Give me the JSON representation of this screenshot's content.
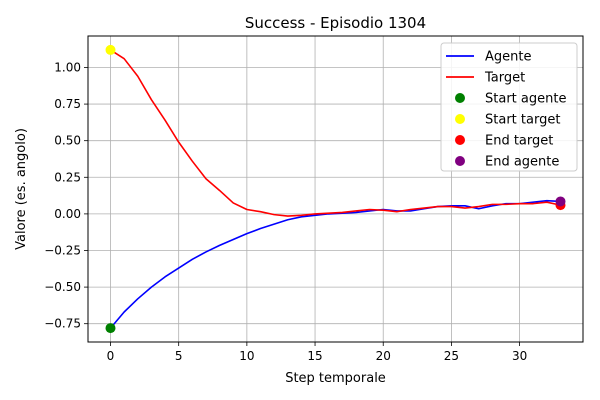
{
  "chart_data": {
    "type": "line",
    "title": "Success - Episodio 1304",
    "xlabel": "Step temporale",
    "ylabel": "Valore (es. angolo)",
    "xlim": [
      -1.65,
      34.65
    ],
    "ylim": [
      -0.875,
      1.215
    ],
    "xticks": [
      0,
      5,
      10,
      15,
      20,
      25,
      30
    ],
    "xtick_labels": [
      "0",
      "5",
      "10",
      "15",
      "20",
      "25",
      "30"
    ],
    "yticks": [
      -0.75,
      -0.5,
      -0.25,
      0.0,
      0.25,
      0.5,
      0.75,
      1.0
    ],
    "ytick_labels": [
      "−0.75",
      "−0.50",
      "−0.25",
      "0.00",
      "0.25",
      "0.50",
      "0.75",
      "1.00"
    ],
    "grid": true,
    "legend_position": "top-right",
    "series": [
      {
        "name": "Agente",
        "color": "#0000ff",
        "x": [
          0,
          1,
          2,
          3,
          4,
          5,
          6,
          7,
          8,
          9,
          10,
          11,
          12,
          13,
          14,
          15,
          16,
          17,
          18,
          19,
          20,
          21,
          22,
          23,
          24,
          25,
          26,
          27,
          28,
          29,
          30,
          31,
          32,
          33
        ],
        "y": [
          -0.78,
          -0.67,
          -0.58,
          -0.5,
          -0.43,
          -0.37,
          -0.31,
          -0.26,
          -0.215,
          -0.175,
          -0.135,
          -0.1,
          -0.07,
          -0.04,
          -0.02,
          -0.01,
          0.0,
          0.005,
          0.01,
          0.02,
          0.03,
          0.02,
          0.02,
          0.035,
          0.05,
          0.055,
          0.055,
          0.035,
          0.055,
          0.07,
          0.07,
          0.08,
          0.09,
          0.085
        ]
      },
      {
        "name": "Target",
        "color": "#ff0000",
        "x": [
          0,
          1,
          2,
          3,
          4,
          5,
          6,
          7,
          8,
          9,
          10,
          11,
          12,
          13,
          14,
          15,
          16,
          17,
          18,
          19,
          20,
          21,
          22,
          23,
          24,
          25,
          26,
          27,
          28,
          29,
          30,
          31,
          32,
          33
        ],
        "y": [
          1.12,
          1.06,
          0.94,
          0.78,
          0.64,
          0.49,
          0.36,
          0.24,
          0.16,
          0.075,
          0.03,
          0.015,
          -0.005,
          -0.015,
          -0.01,
          0.0,
          0.005,
          0.01,
          0.02,
          0.03,
          0.025,
          0.015,
          0.03,
          0.04,
          0.05,
          0.05,
          0.04,
          0.05,
          0.065,
          0.065,
          0.07,
          0.07,
          0.08,
          0.06
        ]
      }
    ],
    "markers": [
      {
        "name": "Start agente",
        "x": 0,
        "y": -0.78,
        "color": "#008000"
      },
      {
        "name": "Start target",
        "x": 0,
        "y": 1.12,
        "color": "#ffff00"
      },
      {
        "name": "End target",
        "x": 33,
        "y": 0.06,
        "color": "#ff0000"
      },
      {
        "name": "End agente",
        "x": 33,
        "y": 0.085,
        "color": "#800080"
      }
    ]
  }
}
